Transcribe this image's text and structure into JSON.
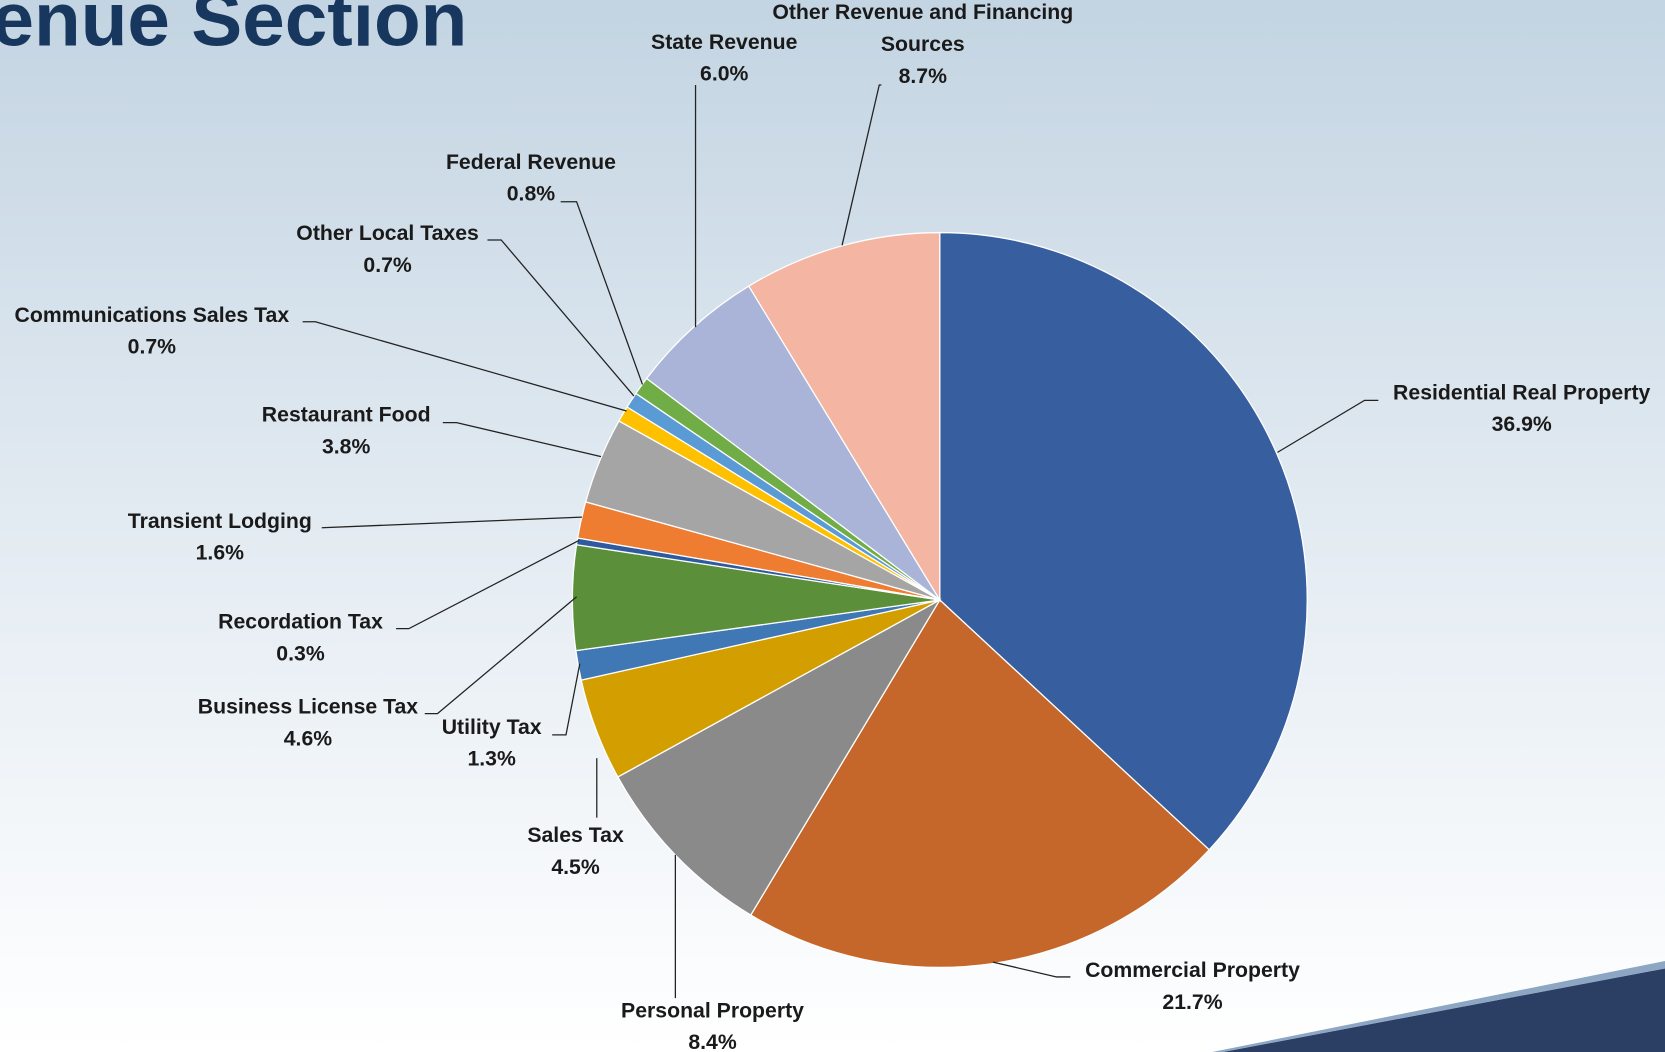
{
  "chart_data": {
    "type": "pie",
    "title": "enue Section",
    "categories": [
      "Residential Real Property",
      "Commercial Property",
      "Personal Property",
      "Sales Tax",
      "Utility Tax",
      "Business License Tax",
      "Recordation Tax",
      "Transient Lodging",
      "Restaurant Food",
      "Communications Sales Tax",
      "Other Local Taxes",
      "Federal Revenue",
      "State Revenue",
      "Other Revenue and Financing Sources"
    ],
    "values": [
      36.9,
      21.7,
      8.4,
      4.5,
      1.3,
      4.6,
      0.3,
      1.6,
      3.8,
      0.7,
      0.7,
      0.8,
      6.0,
      8.7
    ],
    "value_labels": [
      "36.9%",
      "21.7%",
      "8.4%",
      "4.5%",
      "1.3%",
      "4.6%",
      "0.3%",
      "1.6%",
      "3.8%",
      "0.7%",
      "0.7%",
      "0.8%",
      "6.0%",
      "8.7%"
    ],
    "colors": [
      "#375e9f",
      "#c5672a",
      "#8a8a8a",
      "#d39f00",
      "#3f78b4",
      "#5b8f3a",
      "#2e5aa0",
      "#ee7d31",
      "#a5a5a5",
      "#ffc000",
      "#5b9bd5",
      "#70ad47",
      "#a9b4d8",
      "#f4b6a2"
    ]
  }
}
